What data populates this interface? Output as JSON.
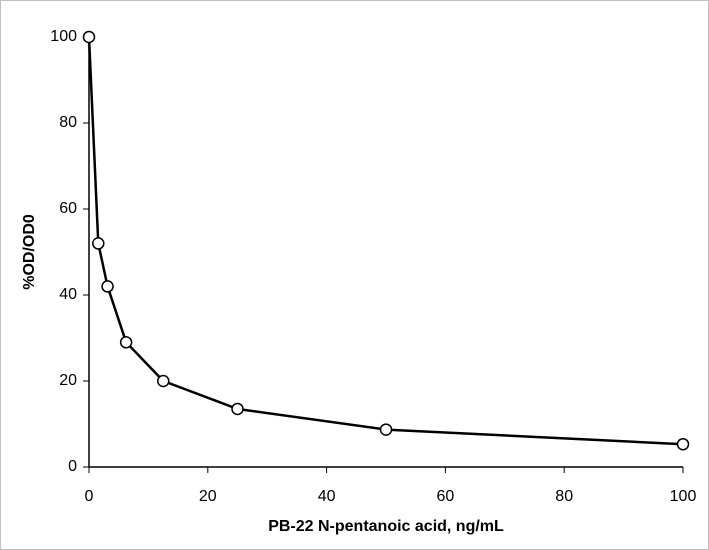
{
  "chart_data": {
    "type": "line",
    "x_label": "PB-22 N-pentanoic acid, ng/mL",
    "y_label": "%OD/OD0",
    "x": [
      0,
      1.5625,
      3.125,
      6.25,
      12.5,
      25,
      50,
      100
    ],
    "values": [
      100,
      52,
      42,
      29,
      20,
      13.5,
      8.7,
      5.3
    ],
    "color": "#000000",
    "marker_fill": "#ffffff",
    "xlim": [
      0,
      100
    ],
    "xticks": [
      0,
      20,
      40,
      60,
      80,
      100
    ],
    "ylim": [
      0,
      100
    ],
    "yticks": [
      0,
      20,
      40,
      60,
      80,
      100
    ],
    "grid": false
  }
}
